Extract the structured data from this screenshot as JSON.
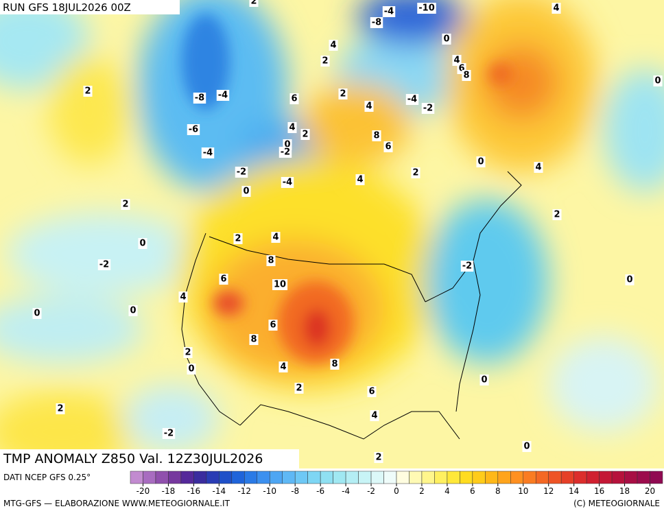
{
  "header": "RUN GFS 18JUL2026 00Z",
  "title": "TMP ANOMALY Z850 Val. 12Z30JUL2026",
  "source": "DATI NCEP GFS 0.25°",
  "footer_left": "MTG-GFS — ELABORAZIONE WWW.METEOGIORNALE.IT",
  "footer_right": "(C) METEOGIORNALE",
  "contour_labels": [
    2,
    -4,
    -10,
    -8,
    0,
    4,
    4,
    2,
    4,
    6,
    8,
    0,
    2,
    -8,
    -4,
    6,
    2,
    4,
    -4,
    -2,
    -6,
    4,
    2,
    8,
    6,
    0,
    -2,
    -4,
    0,
    4,
    -2,
    -4,
    2,
    4,
    0,
    2,
    2,
    2,
    4,
    0,
    8,
    -2,
    -2,
    6,
    10,
    0,
    4,
    0,
    0,
    6,
    8,
    8,
    2,
    0,
    4,
    0,
    2,
    6,
    2,
    4,
    -2,
    0,
    2
  ],
  "colorbar": {
    "ticks": [
      -20,
      -18,
      -16,
      -14,
      -12,
      -10,
      -8,
      -6,
      -4,
      -2,
      0,
      2,
      4,
      6,
      8,
      10,
      12,
      14,
      16,
      18,
      20
    ],
    "colors": [
      "#c28bd0",
      "#a86cc0",
      "#9050ad",
      "#76389e",
      "#55299a",
      "#3a2c9e",
      "#2a3cb4",
      "#1f50c8",
      "#1f64da",
      "#2a7ae6",
      "#3c90ef",
      "#4ea6f3",
      "#5fb8f5",
      "#6ec8f5",
      "#7ed6f4",
      "#8fe0f2",
      "#a0e8f2",
      "#b4eef4",
      "#c8f4f6",
      "#dcf8f8",
      "#effcfa",
      "#fffde0",
      "#fffab4",
      "#fff68c",
      "#fff060",
      "#ffe83a",
      "#ffdc20",
      "#ffcc1a",
      "#ffb818",
      "#ffa41c",
      "#ff9020",
      "#fa7c22",
      "#f46824",
      "#ee5426",
      "#e64028",
      "#dc2e2c",
      "#d02030",
      "#c41836",
      "#b6123c",
      "#a80e44",
      "#9c0c4c",
      "#900a52"
    ]
  }
}
